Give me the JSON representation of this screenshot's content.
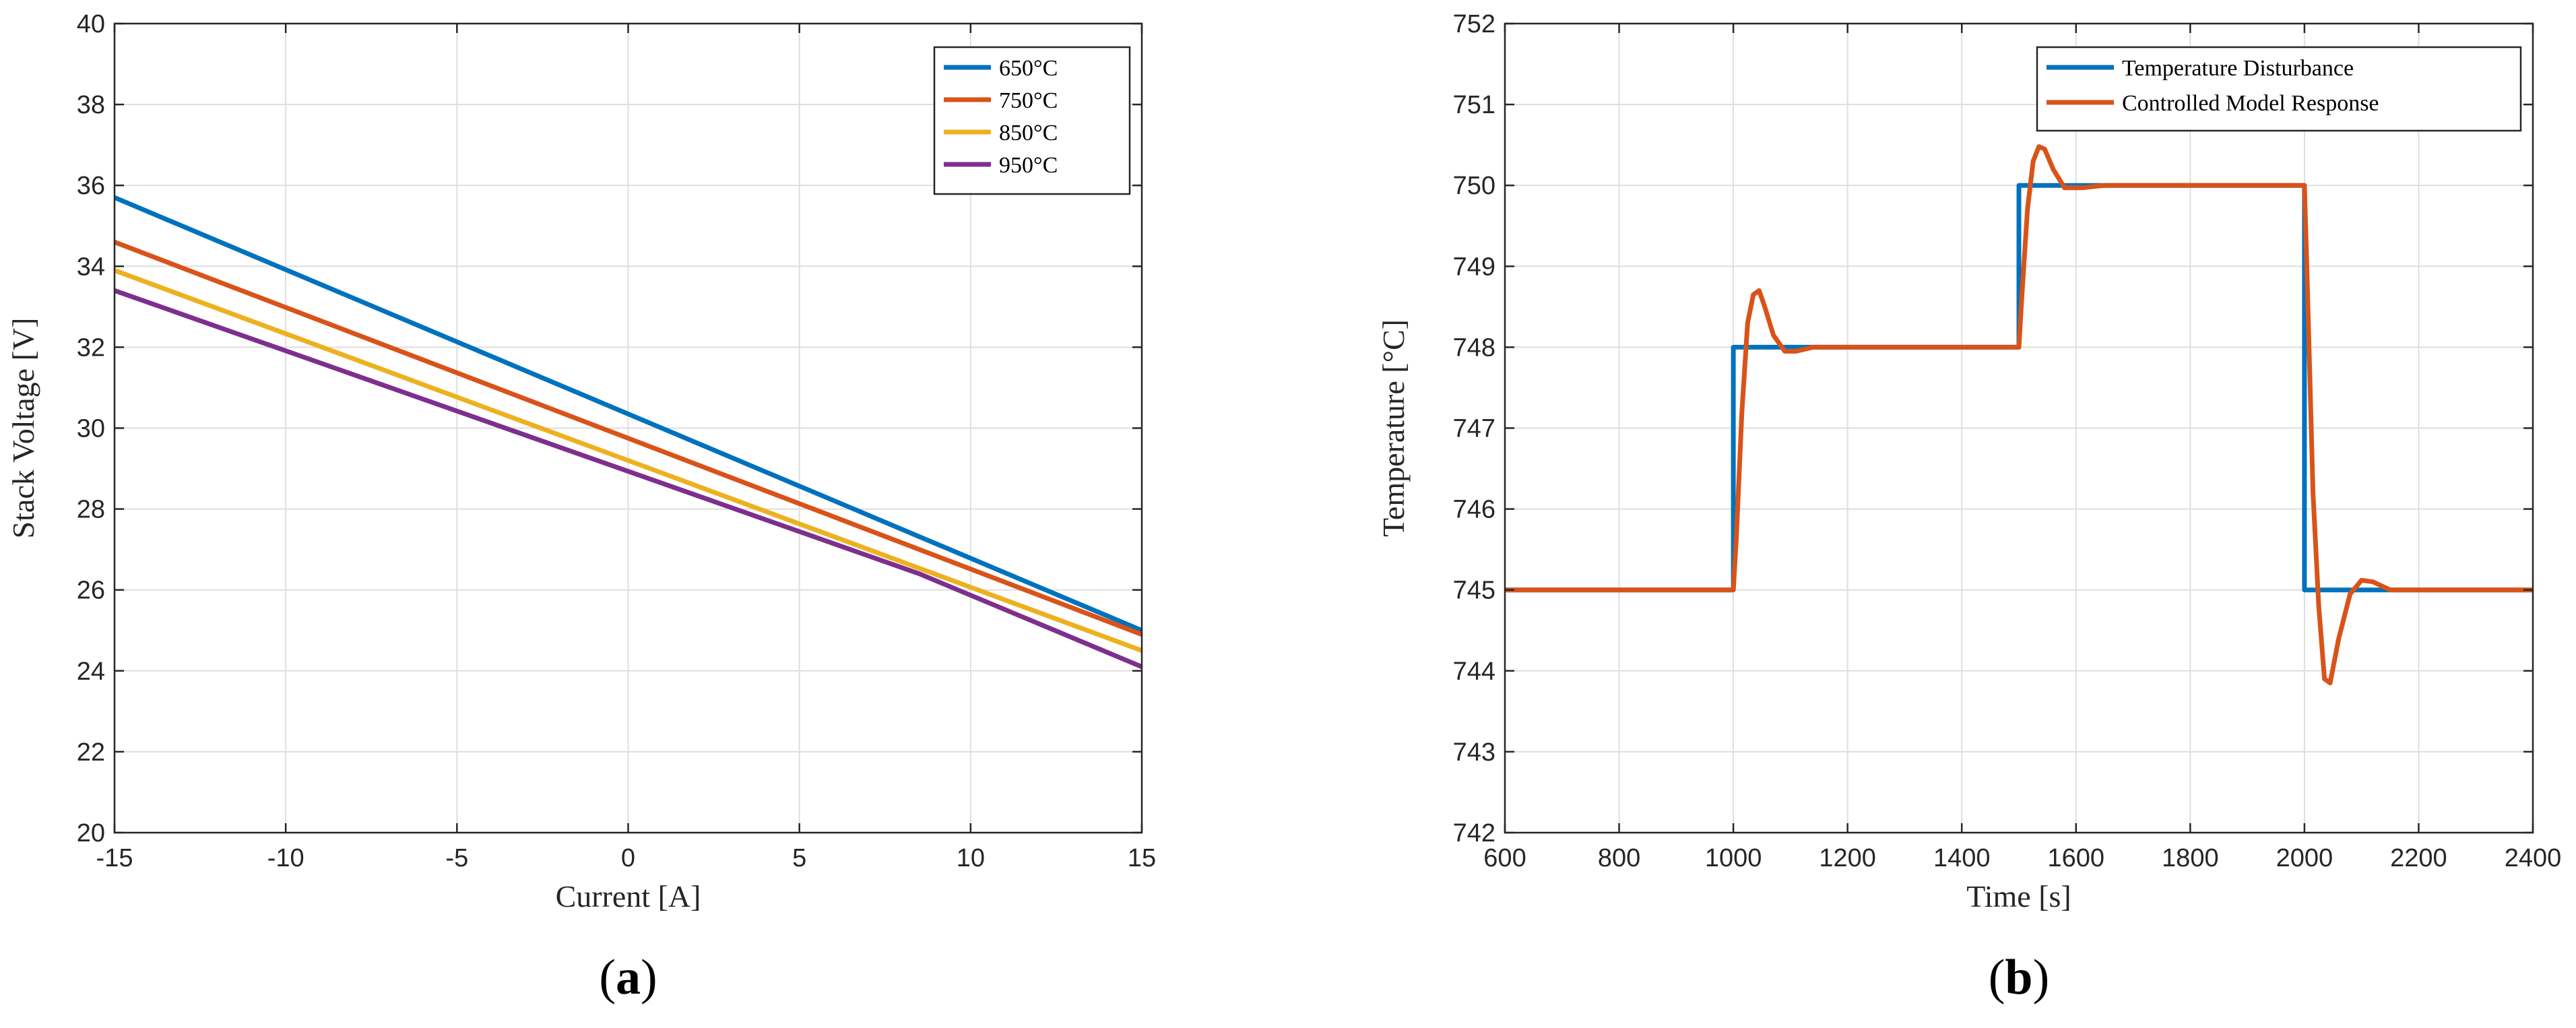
{
  "colors": {
    "blue": "#0072BD",
    "orange": "#D95319",
    "yellow": "#EDB120",
    "purple": "#7E2F8E",
    "grid": "#dedede",
    "axis": "#262626"
  },
  "chart_data": [
    {
      "type": "line",
      "panel_label": {
        "open": "(",
        "letter": "a",
        "close": ")"
      },
      "title": "",
      "xlabel": "Current [A]",
      "ylabel": "Stack Voltage [V]",
      "xlim": [
        -15,
        15
      ],
      "ylim": [
        20,
        40
      ],
      "xticks": [
        -15,
        -10,
        -5,
        0,
        5,
        10,
        15
      ],
      "yticks": [
        20,
        22,
        24,
        26,
        28,
        30,
        32,
        34,
        36,
        38,
        40
      ],
      "grid": true,
      "legend_position": "top-right",
      "series": [
        {
          "name": "650°C",
          "color": "#0072BD",
          "x": [
            -15,
            15
          ],
          "y": [
            35.7,
            25.0
          ]
        },
        {
          "name": "750°C",
          "color": "#D95319",
          "x": [
            -15,
            15
          ],
          "y": [
            34.6,
            24.9
          ]
        },
        {
          "name": "850°C",
          "color": "#EDB120",
          "x": [
            -15,
            15
          ],
          "y": [
            33.9,
            24.5
          ]
        },
        {
          "name": "950°C",
          "color": "#7E2F8E",
          "x": [
            -15,
            8.5,
            15
          ],
          "y": [
            33.4,
            26.4,
            24.1
          ]
        }
      ]
    },
    {
      "type": "line",
      "panel_label": {
        "open": "(",
        "letter": "b",
        "close": ")"
      },
      "title": "",
      "xlabel": "Time [s]",
      "ylabel": "Temperature [°C]",
      "xlim": [
        600,
        2400
      ],
      "ylim": [
        742,
        752
      ],
      "xticks": [
        600,
        800,
        1000,
        1200,
        1400,
        1600,
        1800,
        2000,
        2200,
        2400
      ],
      "yticks": [
        742,
        743,
        744,
        745,
        746,
        747,
        748,
        749,
        750,
        751,
        752
      ],
      "grid": true,
      "legend_position": "top-right",
      "series": [
        {
          "name": "Temperature Disturbance",
          "color": "#0072BD",
          "x": [
            600,
            1000,
            1000,
            1500,
            1500,
            2000,
            2000,
            2400
          ],
          "y": [
            745,
            745,
            748,
            748,
            750,
            750,
            745,
            745
          ]
        },
        {
          "name": "Controlled Model Response",
          "color": "#D95319",
          "x": [
            600,
            1000,
            1005,
            1015,
            1025,
            1035,
            1045,
            1055,
            1070,
            1090,
            1110,
            1140,
            1180,
            1500,
            1505,
            1515,
            1525,
            1535,
            1545,
            1560,
            1580,
            1610,
            1650,
            2000,
            2005,
            2015,
            2025,
            2035,
            2045,
            2060,
            2080,
            2100,
            2120,
            2150,
            2200,
            2400
          ],
          "y": [
            745,
            745,
            745.6,
            747.2,
            748.3,
            748.65,
            748.7,
            748.5,
            748.15,
            747.95,
            747.95,
            748.0,
            748.0,
            748.0,
            748.6,
            749.7,
            750.3,
            750.48,
            750.45,
            750.2,
            749.97,
            749.97,
            750.0,
            750.0,
            748.8,
            746.2,
            744.8,
            743.9,
            743.85,
            744.4,
            744.95,
            745.12,
            745.1,
            745.0,
            745.0,
            745.0
          ]
        }
      ]
    }
  ]
}
